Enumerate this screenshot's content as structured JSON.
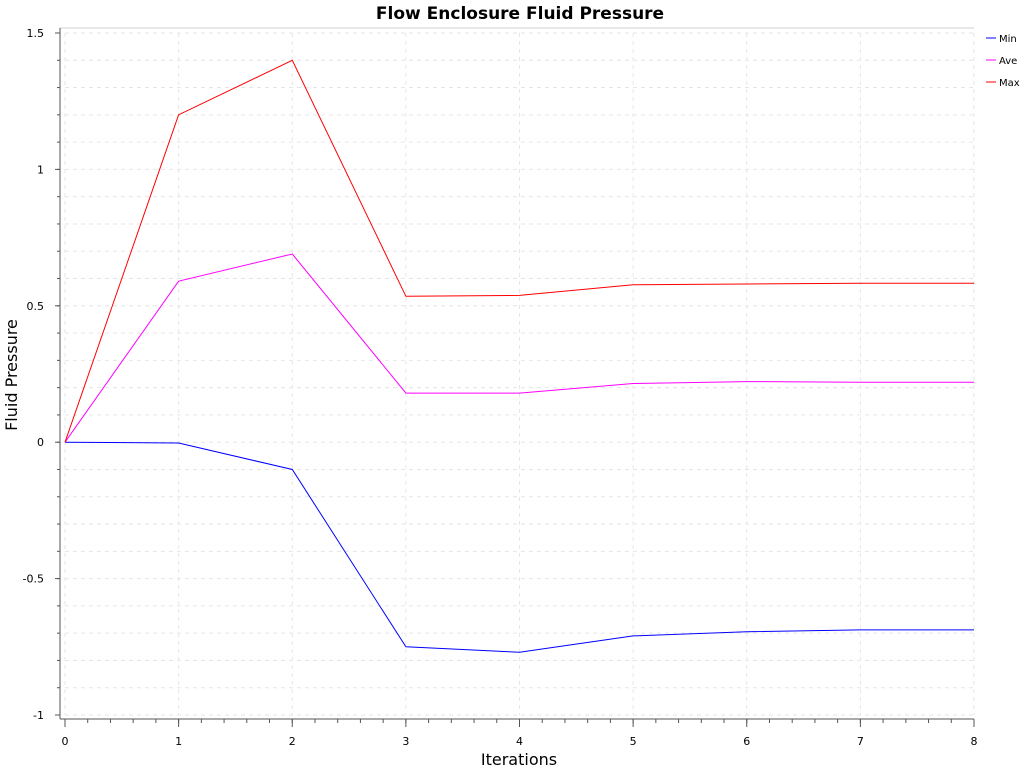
{
  "chart_data": {
    "type": "line",
    "title": "Flow Enclosure Fluid Pressure",
    "xlabel": "Iterations",
    "ylabel": "Fluid Pressure",
    "xlim": [
      0,
      8
    ],
    "ylim": [
      -1,
      1.5
    ],
    "x_ticks": [
      "0",
      "1",
      "2",
      "3",
      "4",
      "5",
      "6",
      "7",
      "8"
    ],
    "y_ticks": [
      "1.5",
      "1",
      "0.5",
      "0",
      "-0.5",
      "-1"
    ],
    "y_tick_values": [
      1.5,
      1,
      0.5,
      0,
      -0.5,
      -1
    ],
    "grid": true,
    "legend_position": "top-right",
    "x": [
      0,
      1,
      2,
      3,
      4,
      5,
      6,
      7,
      8
    ],
    "series": [
      {
        "name": "Min",
        "color": "#0000ff",
        "values": [
          0,
          -0.003,
          -0.1,
          -0.75,
          -0.77,
          -0.71,
          -0.695,
          -0.688,
          -0.688
        ]
      },
      {
        "name": "Ave",
        "color": "#ff00ff",
        "values": [
          0,
          0.59,
          0.69,
          0.18,
          0.18,
          0.215,
          0.222,
          0.22,
          0.22
        ]
      },
      {
        "name": "Max",
        "color": "#ff0000",
        "values": [
          0,
          1.2,
          1.4,
          0.535,
          0.538,
          0.577,
          0.58,
          0.583,
          0.583
        ]
      }
    ]
  }
}
